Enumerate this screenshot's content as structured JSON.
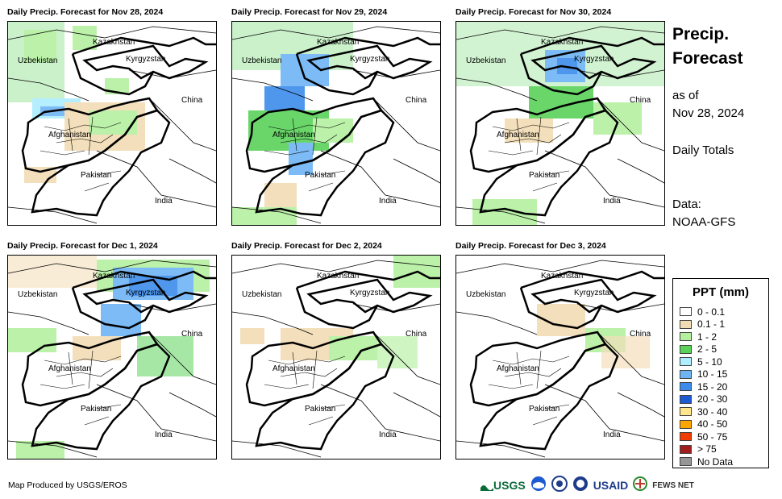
{
  "panels": [
    {
      "title": "Daily Precip. Forecast for Nov 28, 2024",
      "precip": "d1"
    },
    {
      "title": "Daily Precip. Forecast for Nov 29, 2024",
      "precip": "d2"
    },
    {
      "title": "Daily Precip. Forecast for Nov 30, 2024",
      "precip": "d3"
    },
    {
      "title": "Daily Precip. Forecast for Dec 1, 2024",
      "precip": "d4"
    },
    {
      "title": "Daily Precip. Forecast for Dec 2, 2024",
      "precip": "d5"
    },
    {
      "title": "Daily Precip. Forecast for Dec 3, 2024",
      "precip": "d6"
    }
  ],
  "map_labels": {
    "kazakhstan": "Kazakhstan",
    "uzbekistan": "Uzbekistan",
    "kyrgyzstan": "Kyrgyzstan",
    "china": "China",
    "afghanistan": "Afghanistan",
    "pakistan": "Pakistan",
    "india": "India"
  },
  "side": {
    "title_line1": "Precip.",
    "title_line2": "Forecast",
    "asof_line1": "as of",
    "asof_line2": "Nov 28, 2024",
    "totals": "Daily Totals",
    "data_line1": "Data:",
    "data_line2": "NOAA-GFS"
  },
  "legend": {
    "title": "PPT (mm)",
    "items": [
      {
        "label": "0 - 0.1",
        "color": "#ffffff"
      },
      {
        "label": "0.1 - 1",
        "color": "#f2dcb4"
      },
      {
        "label": "1 - 2",
        "color": "#b4f0a0"
      },
      {
        "label": "2 - 5",
        "color": "#5ad25a"
      },
      {
        "label": "5 - 10",
        "color": "#aeeeff"
      },
      {
        "label": "10 - 15",
        "color": "#6eb4f5"
      },
      {
        "label": "15 - 20",
        "color": "#3c8cec"
      },
      {
        "label": "20 - 30",
        "color": "#1e5ad2"
      },
      {
        "label": "30 - 40",
        "color": "#ffe68c"
      },
      {
        "label": "40 - 50",
        "color": "#ffa500"
      },
      {
        "label": "50 - 75",
        "color": "#f03c00"
      },
      {
        "label": "> 75",
        "color": "#a01e1e"
      },
      {
        "label": "No Data",
        "color": "#969696"
      }
    ]
  },
  "footer": {
    "credit": "Map Produced by USGS/EROS",
    "logo_usgs": "USGS",
    "logo_usaid": "USAID",
    "logo_fews": "FEWS NET"
  }
}
